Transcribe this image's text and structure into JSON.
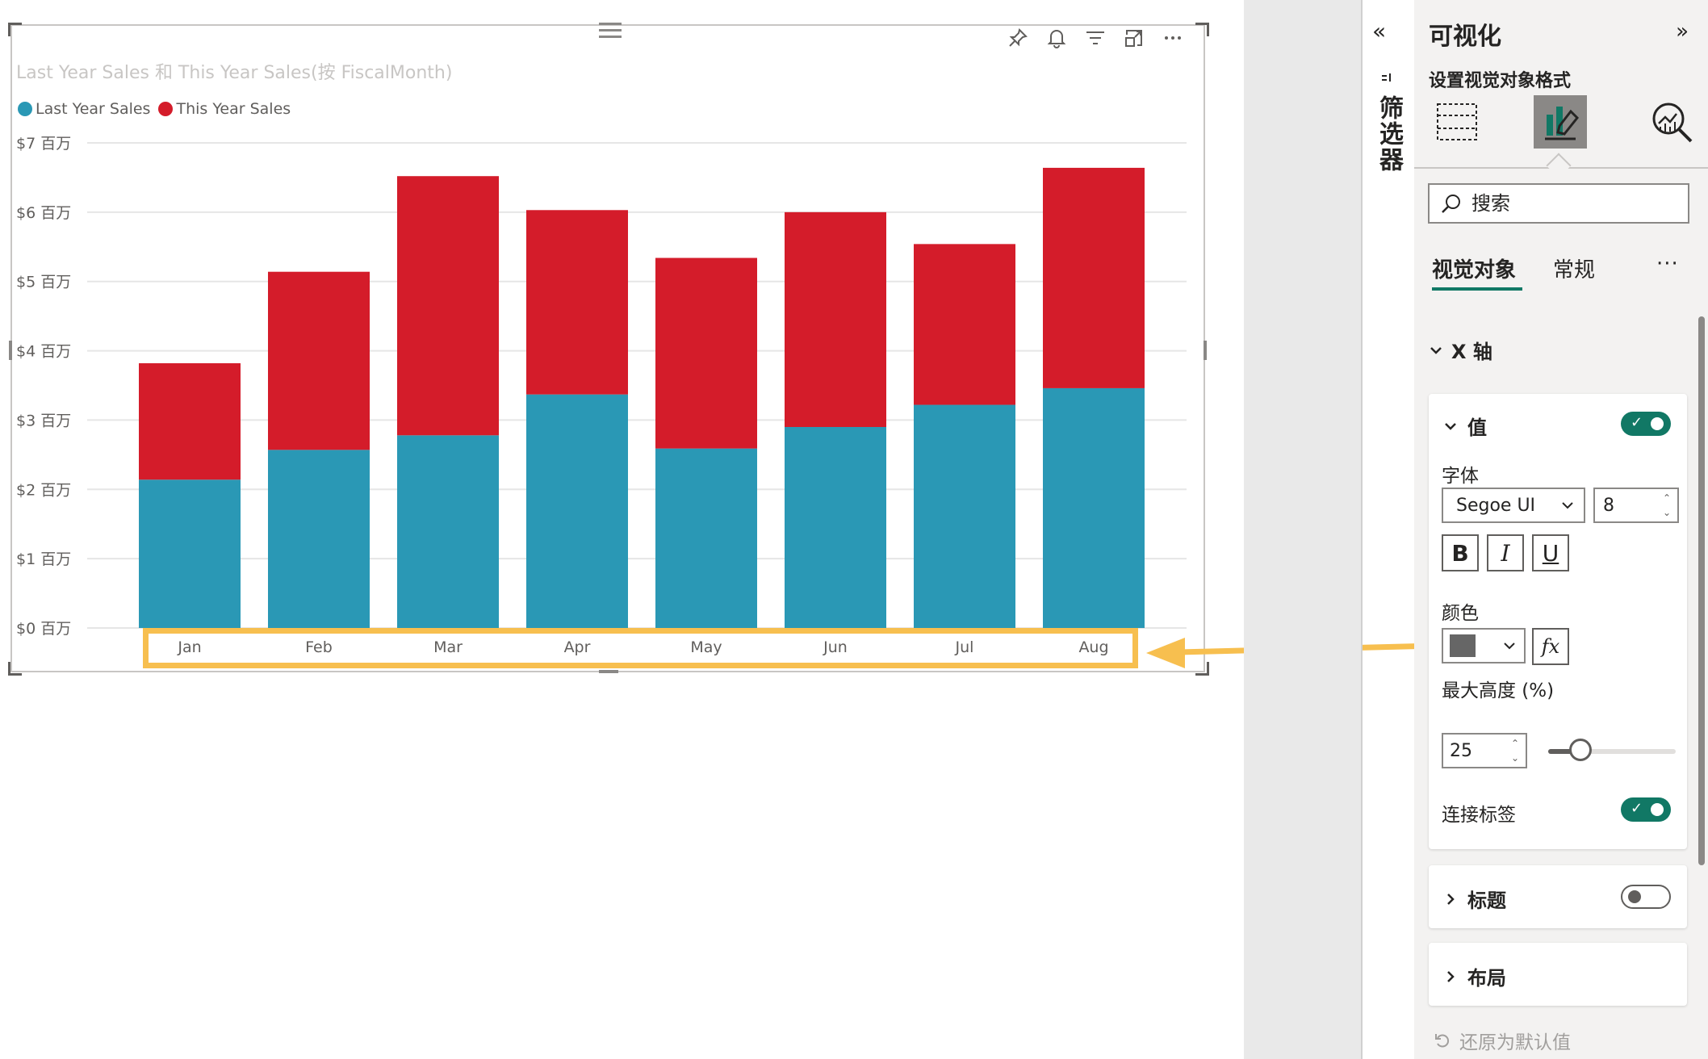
{
  "visual": {
    "title": "Last Year Sales 和 This Year Sales(按 FiscalMonth)",
    "legend": [
      {
        "label": "Last Year Sales",
        "color": "#2a98b5"
      },
      {
        "label": "This Year Sales",
        "color": "#d41c2a"
      }
    ],
    "header_icons": [
      "pin-icon",
      "bell-icon",
      "filter-icon",
      "focus-mode-icon",
      "more-options-icon"
    ]
  },
  "chart_data": {
    "type": "bar",
    "stacked": true,
    "categories": [
      "Jan",
      "Feb",
      "Mar",
      "Apr",
      "May",
      "Jun",
      "Jul",
      "Aug"
    ],
    "series": [
      {
        "name": "Last Year Sales",
        "color": "#2a98b5",
        "values": [
          2.14,
          2.57,
          2.78,
          3.37,
          2.59,
          2.9,
          3.22,
          3.46
        ]
      },
      {
        "name": "This Year Sales",
        "color": "#d41c2a",
        "values": [
          1.68,
          2.57,
          3.74,
          2.66,
          2.75,
          3.1,
          2.32,
          3.18
        ]
      }
    ],
    "yticks": [
      "$0 百万",
      "$1 百万",
      "$2 百万",
      "$3 百万",
      "$4 百万",
      "$5 百万",
      "$6 百万",
      "$7 百万"
    ],
    "ylim": [
      0,
      7
    ],
    "grid": true,
    "legend_position": "top-left"
  },
  "filters": {
    "label": "筛选器",
    "collapse_glyph": "«"
  },
  "pane": {
    "title": "可视化",
    "collapse_glyph": "»",
    "subtitle": "设置视觉对象格式",
    "search_placeholder": "搜索",
    "subtabs": {
      "visual": "视觉对象",
      "general": "常规",
      "more": "···"
    },
    "section": "X 轴",
    "values_card": {
      "title": "值",
      "toggle_on": true,
      "font_label": "字体",
      "font_family": "Segoe UI",
      "font_size": "8",
      "bold": "B",
      "italic": "I",
      "underline": "U",
      "color_label": "颜色",
      "color_value": "#666666",
      "fx": "fx",
      "max_height_label": "最大高度 (%)",
      "max_height_value": "25",
      "max_height_fraction": 0.25,
      "concat_label": "连接标签",
      "concat_on": true
    },
    "title_card": {
      "title": "标题",
      "toggle_on": false
    },
    "layout_card": {
      "title": "布局"
    },
    "revert": "还原为默认值"
  }
}
